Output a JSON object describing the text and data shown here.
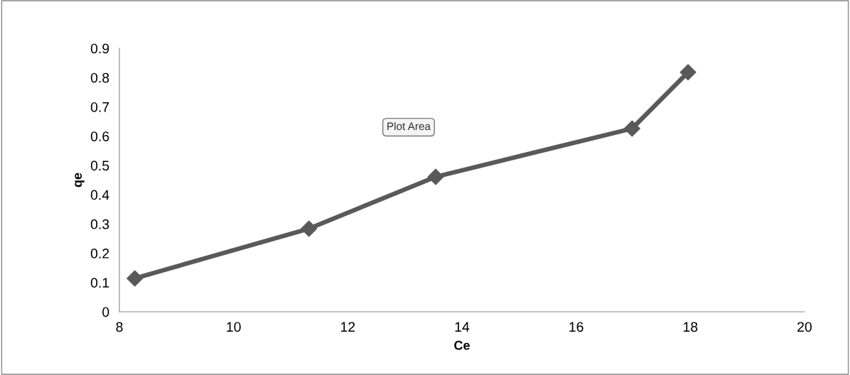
{
  "chart_data": {
    "type": "line",
    "xlabel": "Ce",
    "ylabel": "qe",
    "x": [
      8.27,
      11.32,
      13.54,
      16.98,
      17.96
    ],
    "series": [
      {
        "color": "#595959",
        "values": [
          0.114,
          0.284,
          0.461,
          0.626,
          0.818
        ]
      }
    ],
    "xlim": [
      8,
      20
    ],
    "xticks": [
      8,
      10,
      12,
      14,
      16,
      18,
      20
    ],
    "ylim": [
      0,
      0.9
    ],
    "yticks": [
      0,
      0.1,
      0.2,
      0.3,
      0.4,
      0.5,
      0.6,
      0.7,
      0.8,
      0.9
    ],
    "grid": false,
    "legend": false,
    "marker": "diamond",
    "line_style": "solid",
    "annotations": [
      "Plot Area"
    ]
  }
}
